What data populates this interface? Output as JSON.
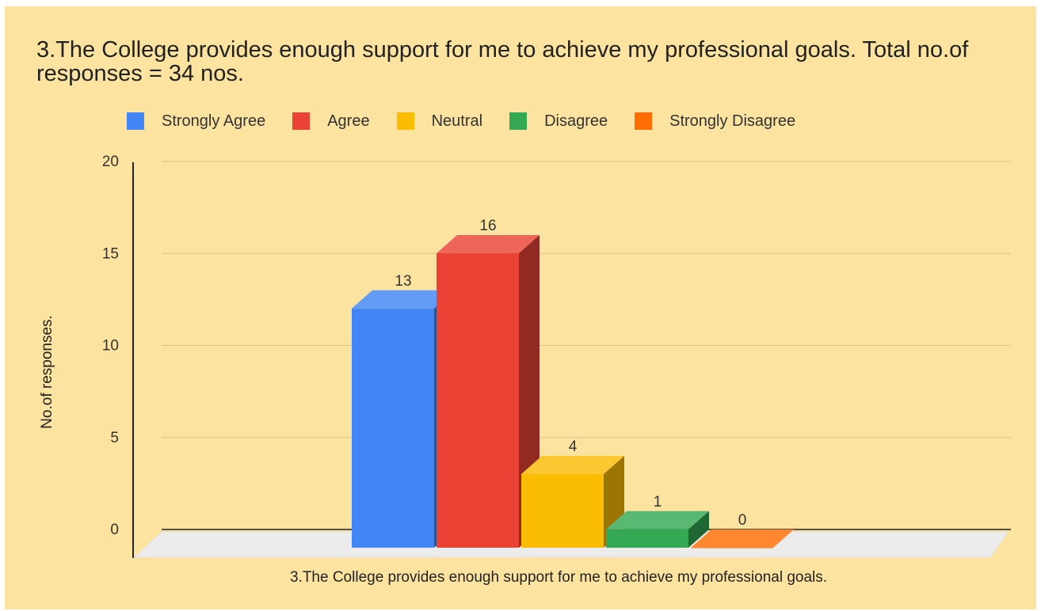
{
  "chart_data": {
    "type": "bar",
    "title": "3.The College provides enough support for me to achieve my professional goals. Total no.of responses = 34 nos.",
    "categories": [
      "3.The College provides enough support for me to achieve my professional goals."
    ],
    "series": [
      {
        "name": "Strongly Agree",
        "values": [
          13
        ],
        "color": "#4285f4"
      },
      {
        "name": "Agree",
        "values": [
          16
        ],
        "color": "#ea4335"
      },
      {
        "name": "Neutral",
        "values": [
          4
        ],
        "color": "#fbbc04"
      },
      {
        "name": "Disagree",
        "values": [
          1
        ],
        "color": "#34a853"
      },
      {
        "name": "Strongly Disagree",
        "values": [
          0
        ],
        "color": "#ff6d01"
      }
    ],
    "xlabel": "3.The College provides enough support for me to achieve my professional goals.",
    "ylabel": "No.of responses.",
    "ylim": [
      0,
      20
    ],
    "yticks": [
      "0",
      "5",
      "10",
      "15",
      "20"
    ],
    "grid": true,
    "legend_position": "top",
    "style": "3d",
    "background_color": "#fde3a0"
  }
}
